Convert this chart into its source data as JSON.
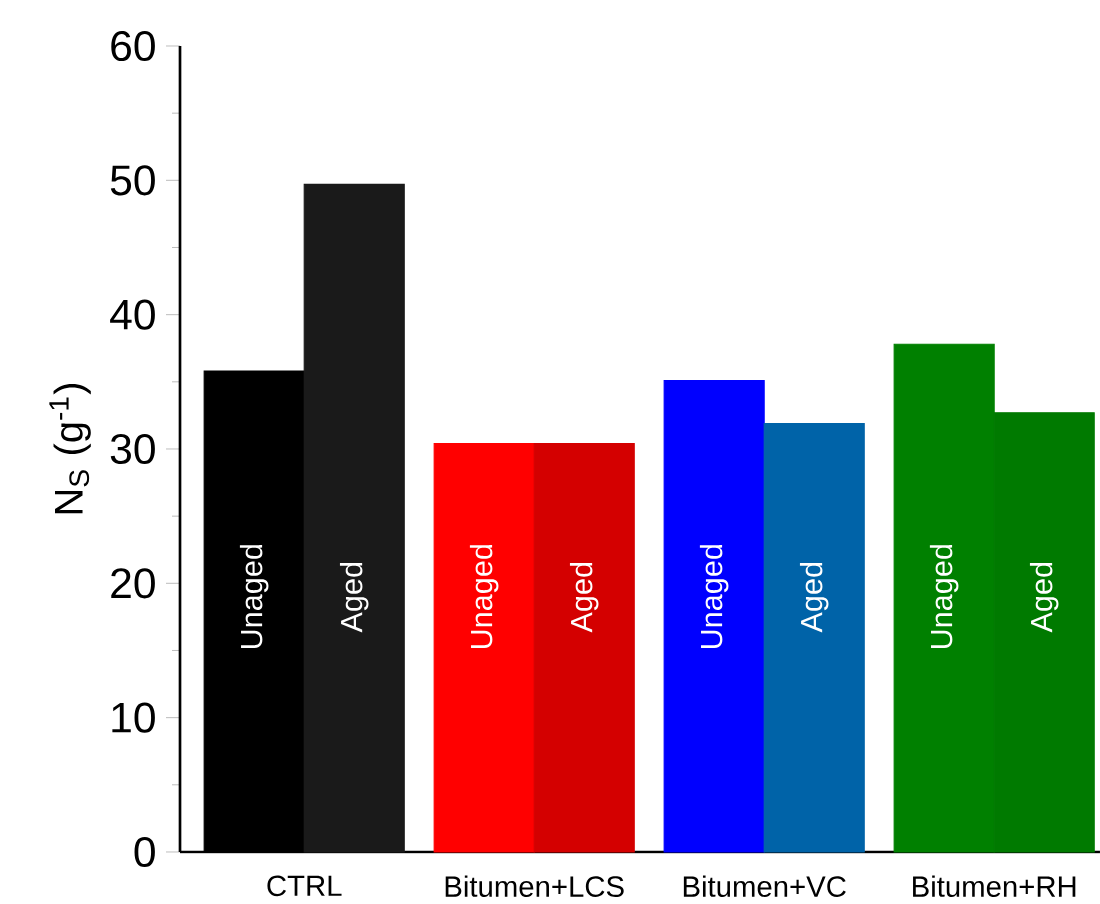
{
  "chart_data": {
    "type": "bar",
    "ylabel": "N$_{S}$ (g$^{-1}$)",
    "categories": [
      "CTRL",
      "Bitumen+LCS",
      "Bitumen+VC",
      "Bitumen+RH"
    ],
    "series": [
      {
        "name": "Unaged",
        "colors": [
          "#000000",
          "#ff0000",
          "#0000ff",
          "#008000"
        ],
        "values": [
          35.8,
          30.4,
          35.1,
          37.8
        ]
      },
      {
        "name": "Aged",
        "colors": [
          "#1a1a1a",
          "#d40000",
          "#0063a8",
          "#007a00"
        ],
        "values": [
          49.7,
          30.4,
          31.9,
          32.7
        ]
      }
    ],
    "ylim": [
      0,
      60
    ],
    "yticks": [
      0,
      10,
      20,
      30,
      40,
      50,
      60
    ]
  }
}
